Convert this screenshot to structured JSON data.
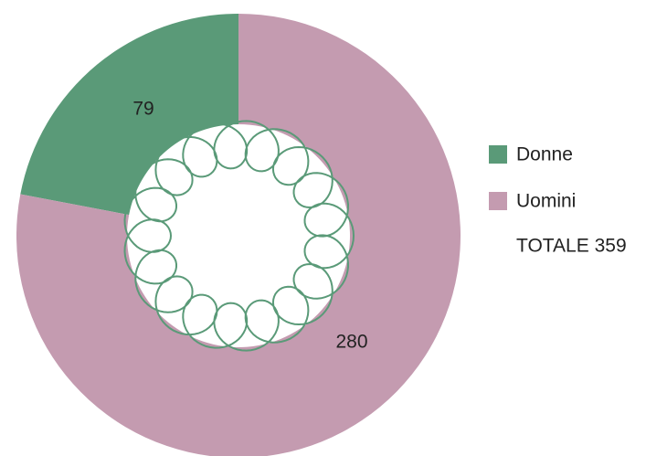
{
  "chart_data": {
    "type": "donut",
    "series": [
      {
        "name": "Donne",
        "color": "#5a9a78",
        "values": [
          79
        ]
      },
      {
        "name": "Uomini",
        "color": "#c49bb0",
        "values": [
          280
        ]
      }
    ],
    "total_label": "TOTALE 359"
  }
}
